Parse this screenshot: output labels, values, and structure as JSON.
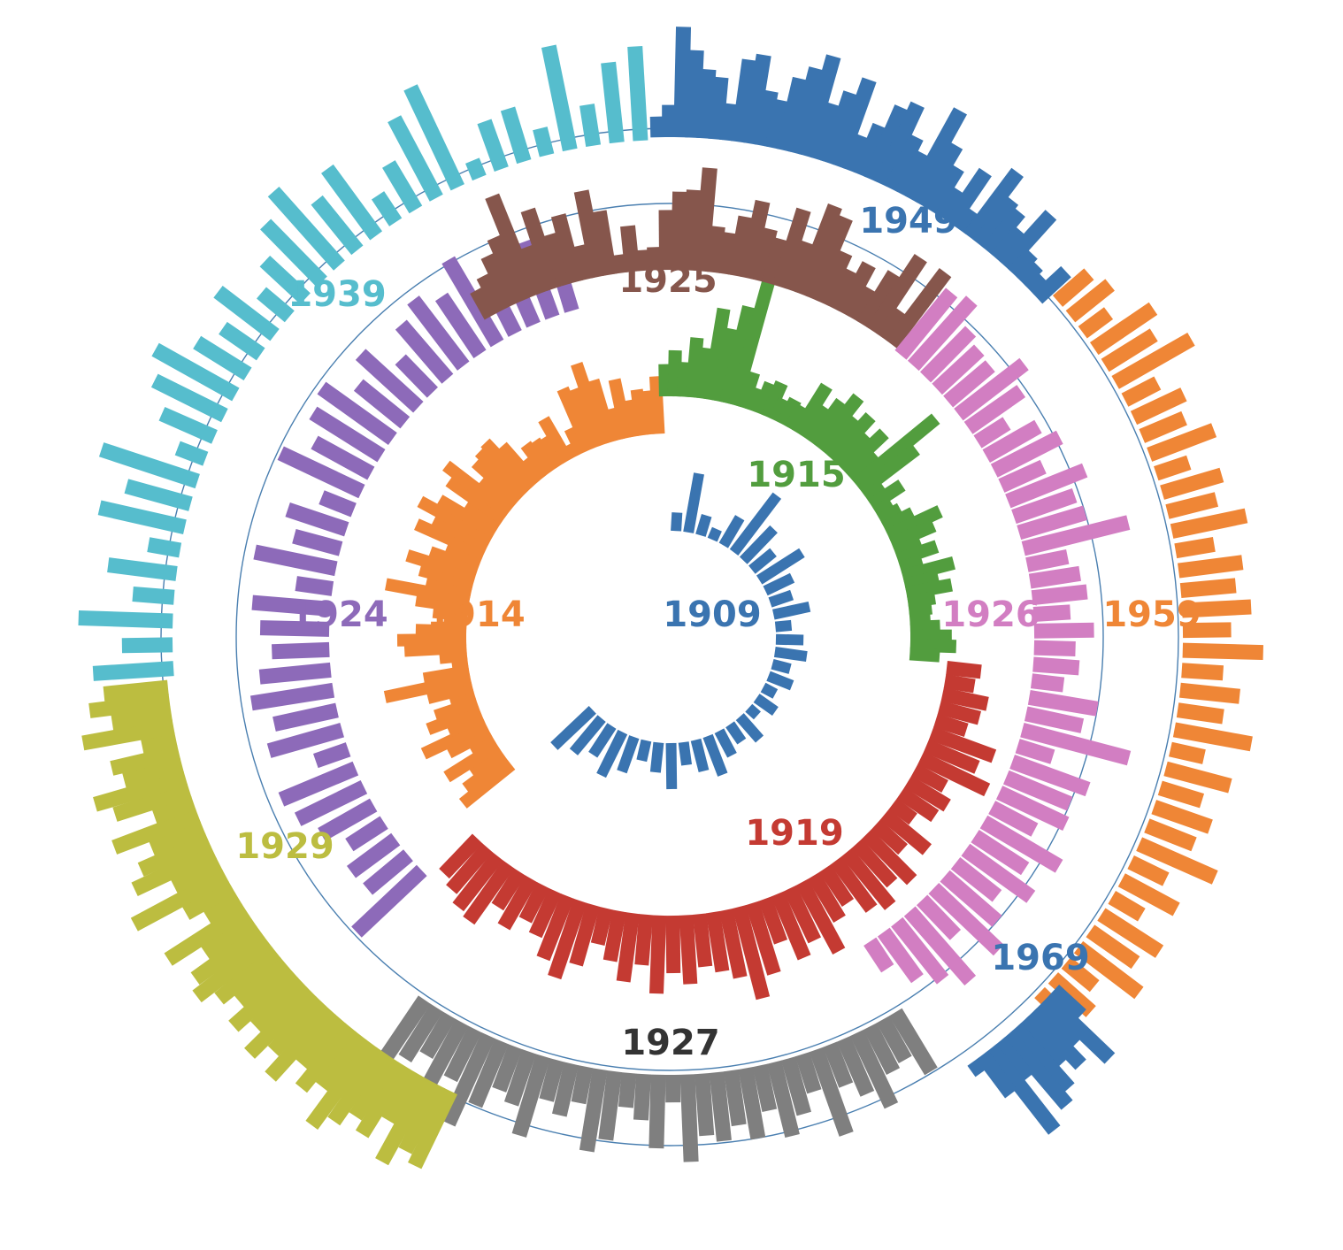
{
  "chart_data": {
    "type": "bar",
    "layout": "radial-spiral",
    "grid": false,
    "legend": "none",
    "segment_labels": [
      "1909",
      "1914",
      "1915",
      "1919",
      "1924",
      "1925",
      "1926",
      "1927",
      "1929",
      "1939",
      "1949",
      "1959",
      "1969"
    ],
    "segments": [
      {
        "label": "1909",
        "color": "#3a74b0",
        "values": [
          0.8,
          2.6,
          0.9,
          0.5,
          1.4,
          3.1,
          1.9,
          1.2,
          2.2,
          1.3,
          1.0,
          1.6,
          0.7,
          1.2,
          1.4,
          0.8,
          1.1,
          0.6,
          1.0,
          0.5,
          1.3,
          0.9,
          1.2,
          1.8,
          1.4,
          1.0,
          2.0,
          1.3,
          0.9,
          1.6,
          2.1,
          1.5,
          1.9,
          2.3
        ]
      },
      {
        "label": "1914",
        "color": "#ef8636",
        "values": [
          2.7,
          2.2,
          1.6,
          2.6,
          1.1,
          2.0,
          3.0,
          1.6,
          2.4,
          1.9,
          1.1,
          2.0,
          3.8,
          2.0,
          0.7,
          1.2,
          2.7,
          3.0,
          2.2,
          1.0,
          1.5,
          2.3,
          3.7,
          2.0,
          2.4,
          3.1,
          2.2,
          1.6,
          3.2,
          2.6,
          3.5,
          2.8,
          1.7,
          2.9,
          3.4,
          1.8,
          2.5,
          2.7,
          2.8,
          2.2,
          1.1,
          1.6,
          1.5,
          1.4,
          2.1,
          0.6,
          1.2,
          2.9,
          2.7,
          3.7,
          2.8,
          1.4,
          2.6,
          1.6,
          2.0,
          1.9,
          2.5
        ]
      },
      {
        "label": "1915",
        "color": "#529d3e",
        "values": [
          1.4,
          2.0,
          1.5,
          2.6,
          2.2,
          4.0,
          3.2,
          4.3,
          5.6,
          1.6,
          1.0,
          1.4,
          1.6,
          1.0,
          1.2,
          1.1,
          2.4,
          1.6,
          2.2,
          2.8,
          2.0,
          2.5,
          1.8,
          2.4,
          1.5,
          4.5,
          3.0,
          0.9,
          1.6,
          0.8,
          1.0,
          1.4,
          2.5,
          2.0,
          1.2,
          1.8,
          1.0,
          2.3,
          1.5,
          2.0,
          1.2,
          1.0,
          0.9,
          1.3,
          1.8,
          2.0,
          1.3
        ]
      },
      {
        "label": "1919",
        "color": "#c43a32",
        "values": [
          1.5,
          1.3,
          2.0,
          1.8,
          1.4,
          2.9,
          2.4,
          3.2,
          1.5,
          2.0,
          1.8,
          1.1,
          2.4,
          1.6,
          2.8,
          2.3,
          3.0,
          2.6,
          1.8,
          2.2,
          3.4,
          2.5,
          3.0,
          2.0,
          3.2,
          4.1,
          3.0,
          2.6,
          2.3,
          3.0,
          2.5,
          3.4,
          2.2,
          3.0,
          2.2,
          1.6,
          2.7,
          3.5,
          2.9,
          2.1,
          1.7,
          2.4,
          1.8,
          3.0,
          2.8,
          2.4,
          2.1
        ]
      },
      {
        "label": "1924",
        "color": "#8d6ab9",
        "values": [
          3.9,
          2.3,
          2.4,
          1.8,
          2.6,
          3.2,
          3.5,
          1.5,
          3.3,
          2.8,
          3.6,
          3.1,
          2.5,
          3.0,
          3.4,
          1.6,
          3.6,
          2.1,
          2.7,
          1.5,
          3.9,
          2.8,
          3.5,
          3.8,
          2.6,
          3.4,
          2.0,
          3.1,
          3.6,
          3.0,
          4.2,
          2.0,
          2.8,
          3.5,
          2.6
        ]
      },
      {
        "label": "1925",
        "color": "#86564c",
        "values": [
          1.3,
          1.7,
          2.4,
          3.0,
          4.7,
          2.1,
          3.6,
          2.3,
          3.0,
          1.5,
          3.8,
          2.8,
          0.8,
          2.0,
          0.9,
          1.0,
          2.6,
          3.4,
          3.5,
          4.5,
          2.0,
          1.8,
          2.6,
          3.4,
          2.3,
          2.0,
          3.5,
          2.2,
          4.1,
          3.8,
          2.4,
          1.8,
          2.4,
          1.5,
          2.6,
          3.8,
          1.4,
          3.9
        ]
      },
      {
        "label": "1926",
        "color": "#d27ec2",
        "values": [
          3.5,
          3.8,
          2.8,
          2.5,
          2.4,
          3.6,
          2.8,
          1.5,
          2.6,
          3.2,
          2.0,
          3.6,
          2.8,
          3.0,
          4.7,
          1.8,
          2.2,
          2.4,
          1.6,
          2.6,
          1.8,
          2.0,
          1.4,
          3.0,
          2.5,
          4.8,
          1.6,
          3.5,
          3.0,
          3.2,
          2.1,
          3.8,
          2.6,
          3.5,
          2.3,
          3.0,
          3.9,
          2.1,
          4.0,
          3.2,
          2.5,
          1.4
        ]
      },
      {
        "label": "1927",
        "color": "#7f7f7f",
        "values": [
          3.0,
          2.0,
          2.2,
          3.5,
          2.6,
          1.9,
          3.9,
          1.7,
          2.5,
          3.3,
          2.0,
          3.1,
          2.4,
          3.0,
          2.7,
          3.8,
          1.2,
          3.2,
          2.0,
          1.5,
          3.0,
          3.6,
          1.6,
          2.3,
          1.8,
          3.6,
          2.4,
          2.0,
          3.0,
          4.2,
          2.4,
          3.5,
          2.0,
          2.6,
          3.0
        ]
      },
      {
        "label": "1929",
        "color": "#bcbd40",
        "values": [
          3.6,
          3.2,
          4.1,
          2.4,
          3.5,
          3.0,
          3.7,
          4.4,
          2.8,
          3.4,
          2.6,
          3.9,
          3.0,
          3.8,
          2.8,
          3.5,
          2.6,
          3.2,
          3.9,
          3.5,
          2.5,
          4.0,
          1.6,
          2.3,
          4.5,
          2.2,
          3.8,
          3.2,
          2.4,
          3.9,
          1.8,
          3.4,
          4.1,
          2.6,
          3.0,
          1.5,
          4.0,
          2.6,
          3.5,
          2.8
        ]
      },
      {
        "label": "1939",
        "color": "#56bdcd",
        "values": [
          3.5,
          2.2,
          4.1,
          1.8,
          3.0,
          1.4,
          3.8,
          2.9,
          4.4,
          1.3,
          2.5,
          3.4,
          4.0,
          2.6,
          2.0,
          3.1,
          1.6,
          2.4,
          3.5,
          4.3,
          2.8,
          3.6,
          1.4,
          2.3,
          3.9,
          4.8,
          0.8,
          2.2,
          2.4,
          1.2,
          4.6,
          1.8,
          3.5,
          4.1
        ]
      },
      {
        "label": "1949",
        "color": "#3a74b0",
        "values": [
          0.9,
          1.4,
          4.8,
          3.8,
          3.0,
          2.7,
          1.6,
          3.6,
          3.9,
          2.4,
          2.1,
          3.2,
          3.8,
          4.5,
          2.5,
          3.2,
          4.0,
          1.6,
          2.3,
          3.4,
          3.8,
          2.5,
          2.0,
          4.4,
          3.0,
          2.2,
          1.4,
          2.7,
          1.0,
          3.5,
          2.4,
          2.2,
          1.6,
          3.0,
          1.2,
          1.0,
          0.8,
          1.7
        ]
      },
      {
        "label": "1959",
        "color": "#ef8636",
        "values": [
          1.8,
          2.2,
          1.4,
          3.1,
          2.5,
          3.8,
          1.6,
          2.4,
          2.0,
          3.0,
          1.5,
          2.7,
          2.2,
          3.3,
          1.7,
          2.8,
          2.4,
          3.0,
          2.1,
          3.5,
          1.8,
          2.6,
          2.0,
          3.4,
          1.5,
          2.9,
          1.9,
          2.6,
          2.2,
          3.6,
          1.7,
          2.7,
          1.5,
          3.0,
          2.4,
          3.3,
          1.6,
          2.2,
          1.4
        ]
      },
      {
        "label": "1969",
        "color": "#3a74b0",
        "values": [
          1.6,
          3.8,
          2.3,
          3.1,
          2.5,
          3.5,
          4.0,
          2.0,
          4.5,
          2.1,
          0.6
        ]
      }
    ]
  }
}
